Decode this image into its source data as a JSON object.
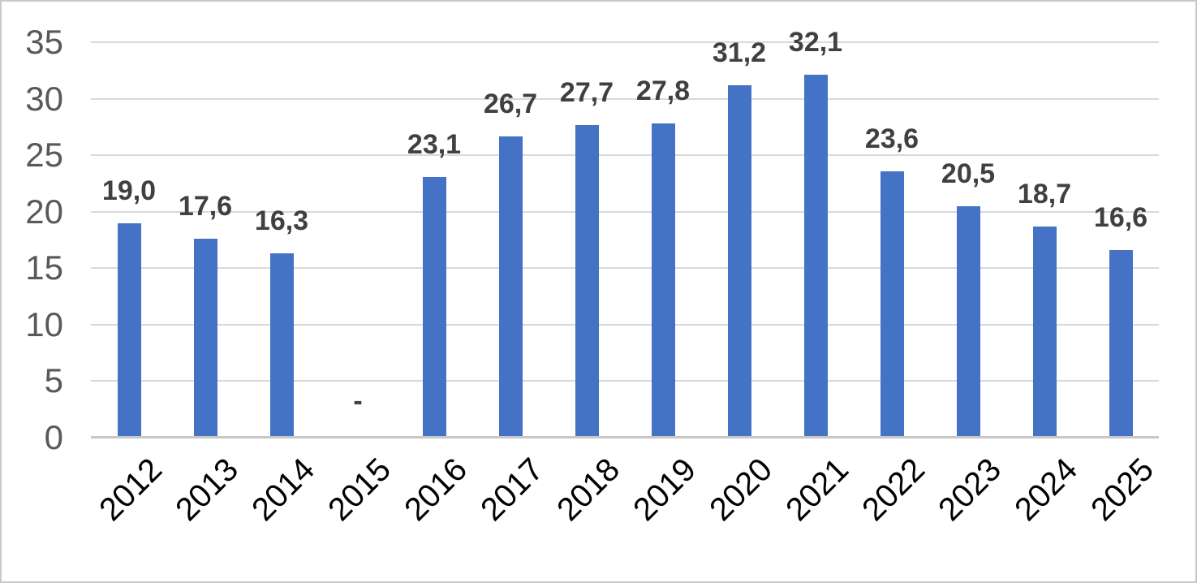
{
  "chart_data": {
    "type": "bar",
    "title": "",
    "xlabel": "",
    "ylabel": "",
    "categories": [
      "2012",
      "2013",
      "2014",
      "2015",
      "2016",
      "2017",
      "2018",
      "2019",
      "2020",
      "2021",
      "2022",
      "2023",
      "2024",
      "2025"
    ],
    "values": [
      19.0,
      17.6,
      16.3,
      null,
      23.1,
      26.7,
      27.7,
      27.8,
      31.2,
      32.1,
      23.6,
      20.5,
      18.7,
      16.6
    ],
    "value_labels": [
      "19,0",
      "17,6",
      "16,3",
      "-",
      "23,1",
      "26,7",
      "27,7",
      "27,8",
      "31,2",
      "32,1",
      "23,6",
      "20,5",
      "18,7",
      "16,6"
    ],
    "ylim": [
      0,
      35
    ],
    "yticks": [
      0,
      5,
      10,
      15,
      20,
      25,
      30,
      35
    ],
    "grid": true,
    "legend": "none",
    "decimal_separator": ",",
    "colors": {
      "bar": "#4472c4",
      "gridline": "#d9d9d9",
      "axis_line": "#c7c7c7",
      "y_tick_text": "#595959",
      "value_label_text": "#404040",
      "x_tick_text": "#000000",
      "frame_border": "#c9c9c9",
      "background": "#ffffff"
    }
  }
}
